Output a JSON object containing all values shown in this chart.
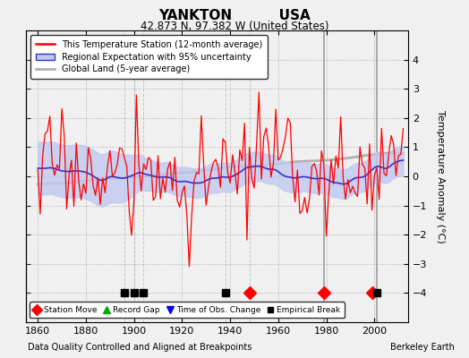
{
  "title_line1": "YANKTON          USA",
  "title_line2": "42.873 N, 97.382 W (United States)",
  "ylabel": "Temperature Anomaly (°C)",
  "xlabel_bottom": "Data Quality Controlled and Aligned at Breakpoints",
  "xlabel_right": "Berkeley Earth",
  "xlim": [
    1855,
    2014
  ],
  "ylim": [
    -5,
    5
  ],
  "yticks": [
    -4,
    -3,
    -2,
    -1,
    0,
    1,
    2,
    3,
    4
  ],
  "xticks": [
    1860,
    1880,
    1900,
    1920,
    1940,
    1960,
    1980,
    2000
  ],
  "background_color": "#f0f0f0",
  "plot_bg_color": "#f0f0f0",
  "legend_labels": [
    "This Temperature Station (12-month average)",
    "Regional Expectation with 95% uncertainty",
    "Global Land (5-year average)"
  ],
  "station_move_years": [
    1948,
    1979,
    1999
  ],
  "empirical_break_years": [
    1896,
    1900,
    1904,
    1938,
    2001
  ],
  "solid_vline_years": [
    1979,
    2001
  ],
  "dashed_vline_years": [
    1896,
    1900,
    1904,
    1938,
    1948
  ],
  "seed": 17,
  "start_year": 1860,
  "end_year": 2012
}
